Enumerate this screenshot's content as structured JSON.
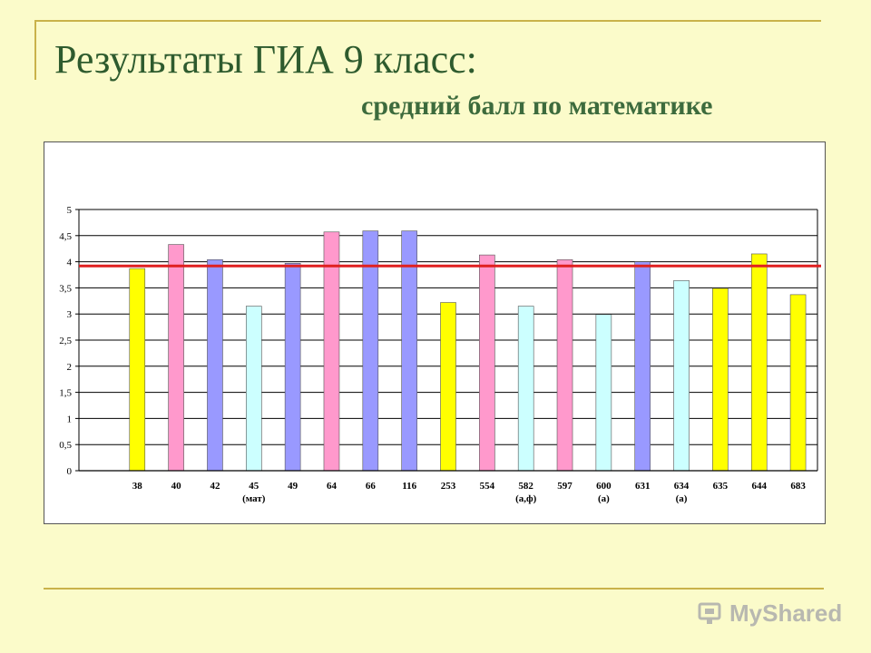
{
  "slide": {
    "title": "Результаты ГИА 9 класс:",
    "subtitle": "средний балл по математике"
  },
  "watermark": {
    "text": "MyShared",
    "icon": "myshared-logo-icon"
  },
  "chart_data": {
    "type": "bar",
    "title": "",
    "xlabel": "",
    "ylabel": "",
    "ylim": [
      0,
      5
    ],
    "y_ticks": [
      "0",
      "0,5",
      "1",
      "1,5",
      "2",
      "2,5",
      "3",
      "3,5",
      "4",
      "4,5",
      "5"
    ],
    "grid": true,
    "categories": [
      "38",
      "40",
      "42",
      "45",
      "49",
      "64",
      "66",
      "116",
      "253",
      "554",
      "582",
      "597",
      "600",
      "631",
      "634",
      "635",
      "644",
      "683"
    ],
    "category_notes": [
      "",
      "",
      "",
      "(мат)",
      "",
      "",
      "",
      "",
      "",
      "",
      "(а,ф)",
      "",
      "(а)",
      "",
      "(а)",
      "",
      "",
      ""
    ],
    "values": [
      3.87,
      4.33,
      4.04,
      3.15,
      3.97,
      4.57,
      4.59,
      4.59,
      3.22,
      4.13,
      3.15,
      4.04,
      2.99,
      4.0,
      3.64,
      3.49,
      4.15,
      3.37
    ],
    "bar_colors": [
      "#ffff00",
      "#ff99cc",
      "#9999ff",
      "#ccffff",
      "#9999ff",
      "#ff99cc",
      "#9999ff",
      "#9999ff",
      "#ffff00",
      "#ff99cc",
      "#ccffff",
      "#ff99cc",
      "#ccffff",
      "#9999ff",
      "#ccffff",
      "#ffff00",
      "#ffff00",
      "#ffff00"
    ],
    "reference_line": {
      "value": 3.92,
      "color": "#e02020"
    }
  }
}
